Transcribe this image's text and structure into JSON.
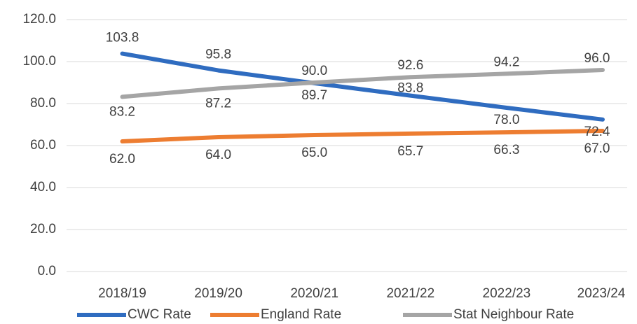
{
  "chart_data": {
    "type": "line",
    "categories": [
      "2018/19",
      "2019/20",
      "2020/21",
      "2021/22",
      "2022/23",
      "2023/24"
    ],
    "series": [
      {
        "name": "CWC Rate",
        "color": "#2f6cc0",
        "values": [
          103.8,
          95.8,
          89.7,
          83.8,
          78.0,
          72.4
        ],
        "value_labels": [
          "103.8",
          "95.8",
          "89.7",
          "83.8",
          "78.0",
          "72.4"
        ]
      },
      {
        "name": "England Rate",
        "color": "#ed7d31",
        "values": [
          62.0,
          64.0,
          65.0,
          65.7,
          66.3,
          67.0
        ],
        "value_labels": [
          "62.0",
          "64.0",
          "65.0",
          "65.7",
          "66.3",
          "67.0"
        ]
      },
      {
        "name": "Stat Neighbour Rate",
        "color": "#a5a5a5",
        "values": [
          83.2,
          87.2,
          90.0,
          92.6,
          94.2,
          96.0
        ],
        "value_labels": [
          "83.2",
          "87.2",
          "90.0",
          "92.6",
          "94.2",
          "96.0"
        ]
      }
    ],
    "ylim": [
      0,
      120
    ],
    "yticks": [
      {
        "value": 0,
        "label": "0.0"
      },
      {
        "value": 20,
        "label": "20.0"
      },
      {
        "value": 40,
        "label": "40.0"
      },
      {
        "value": 60,
        "label": "60.0"
      },
      {
        "value": 80,
        "label": "80.0"
      },
      {
        "value": 100,
        "label": "100.0"
      },
      {
        "value": 120,
        "label": "120.0"
      }
    ],
    "grid": true,
    "legend": "bottom"
  }
}
